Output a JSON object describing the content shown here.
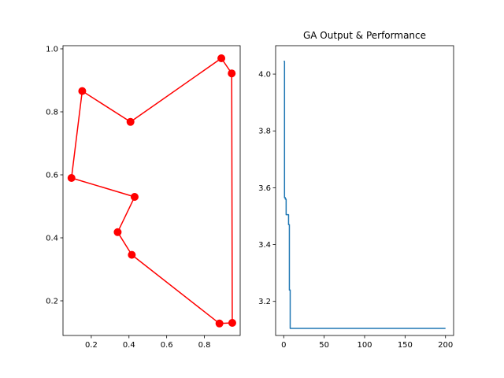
{
  "chart_data": [
    {
      "type": "line",
      "title": "",
      "xlabel": "",
      "ylabel": "",
      "xlim": [
        0.05,
        0.99
      ],
      "ylim": [
        0.09,
        1.01
      ],
      "xticks": [
        "0.2",
        "0.4",
        "0.6",
        "0.8"
      ],
      "xtick_values": [
        0.2,
        0.4,
        0.6,
        0.8
      ],
      "yticks": [
        "0.2",
        "0.4",
        "0.6",
        "0.8",
        "1.0"
      ],
      "ytick_values": [
        0.2,
        0.4,
        0.6,
        0.8,
        1.0
      ],
      "grid": false,
      "series": [
        {
          "color": "#ff0000",
          "marker": "circle",
          "points": [
            [
              0.89,
              0.97
            ],
            [
              0.945,
              0.922
            ],
            [
              0.948,
              0.13
            ],
            [
              0.88,
              0.128
            ],
            [
              0.415,
              0.346
            ],
            [
              0.34,
              0.418
            ],
            [
              0.43,
              0.53
            ],
            [
              0.095,
              0.59
            ],
            [
              0.152,
              0.866
            ],
            [
              0.408,
              0.768
            ],
            [
              0.89,
              0.97
            ]
          ]
        }
      ]
    },
    {
      "type": "line",
      "title": "GA Output & Performance",
      "xlabel": "",
      "ylabel": "",
      "xlim": [
        -10,
        210
      ],
      "ylim": [
        3.08,
        4.1
      ],
      "xticks": [
        "0",
        "50",
        "100",
        "150",
        "200"
      ],
      "xtick_values": [
        0,
        50,
        100,
        150,
        200
      ],
      "yticks": [
        "3.2",
        "3.4",
        "3.6",
        "3.8",
        "4.0"
      ],
      "ytick_values": [
        3.2,
        3.4,
        3.6,
        3.8,
        4.0
      ],
      "grid": false,
      "series": [
        {
          "color": "#1f77b4",
          "marker": "none",
          "x": [
            0,
            1,
            1,
            2,
            2,
            3,
            3,
            6,
            6,
            7,
            7,
            8,
            8,
            200
          ],
          "y": [
            4.045,
            4.045,
            3.565,
            3.565,
            3.56,
            3.56,
            3.505,
            3.505,
            3.47,
            3.47,
            3.24,
            3.24,
            3.105,
            3.105
          ]
        }
      ]
    }
  ]
}
